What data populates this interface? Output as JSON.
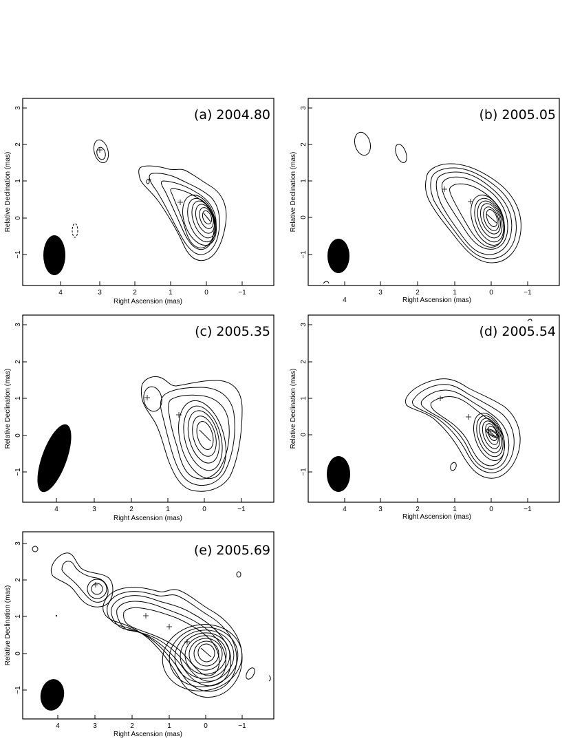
{
  "panels": [
    {
      "label": "(a) 2004.80",
      "xlabel": "Right Ascension  (mas)",
      "ylabel": "Relative Declination  (mas)"
    },
    {
      "label": "(b) 2005.05",
      "xlabel": "Right Ascension  (mas)",
      "ylabel": "Relative Declination  (mas)"
    },
    {
      "label": "(c) 2005.35",
      "xlabel": "Right Ascension  (mas)",
      "ylabel": "Relative Declination  (mas)"
    },
    {
      "label": "(d) 2005.54",
      "xlabel": "Right Ascension  (mas)",
      "ylabel": "Relative Declination  (mas)"
    },
    {
      "label": "(e) 2005.69",
      "xlabel": "Right Ascension  (mas)",
      "ylabel": "Relative Declination  (mas)"
    }
  ],
  "axes": {
    "x_ticks": [
      "4",
      "3",
      "2",
      "1",
      "0",
      "−1"
    ],
    "y_ticks": [
      "3",
      "2",
      "1",
      "0",
      "−1"
    ]
  }
}
